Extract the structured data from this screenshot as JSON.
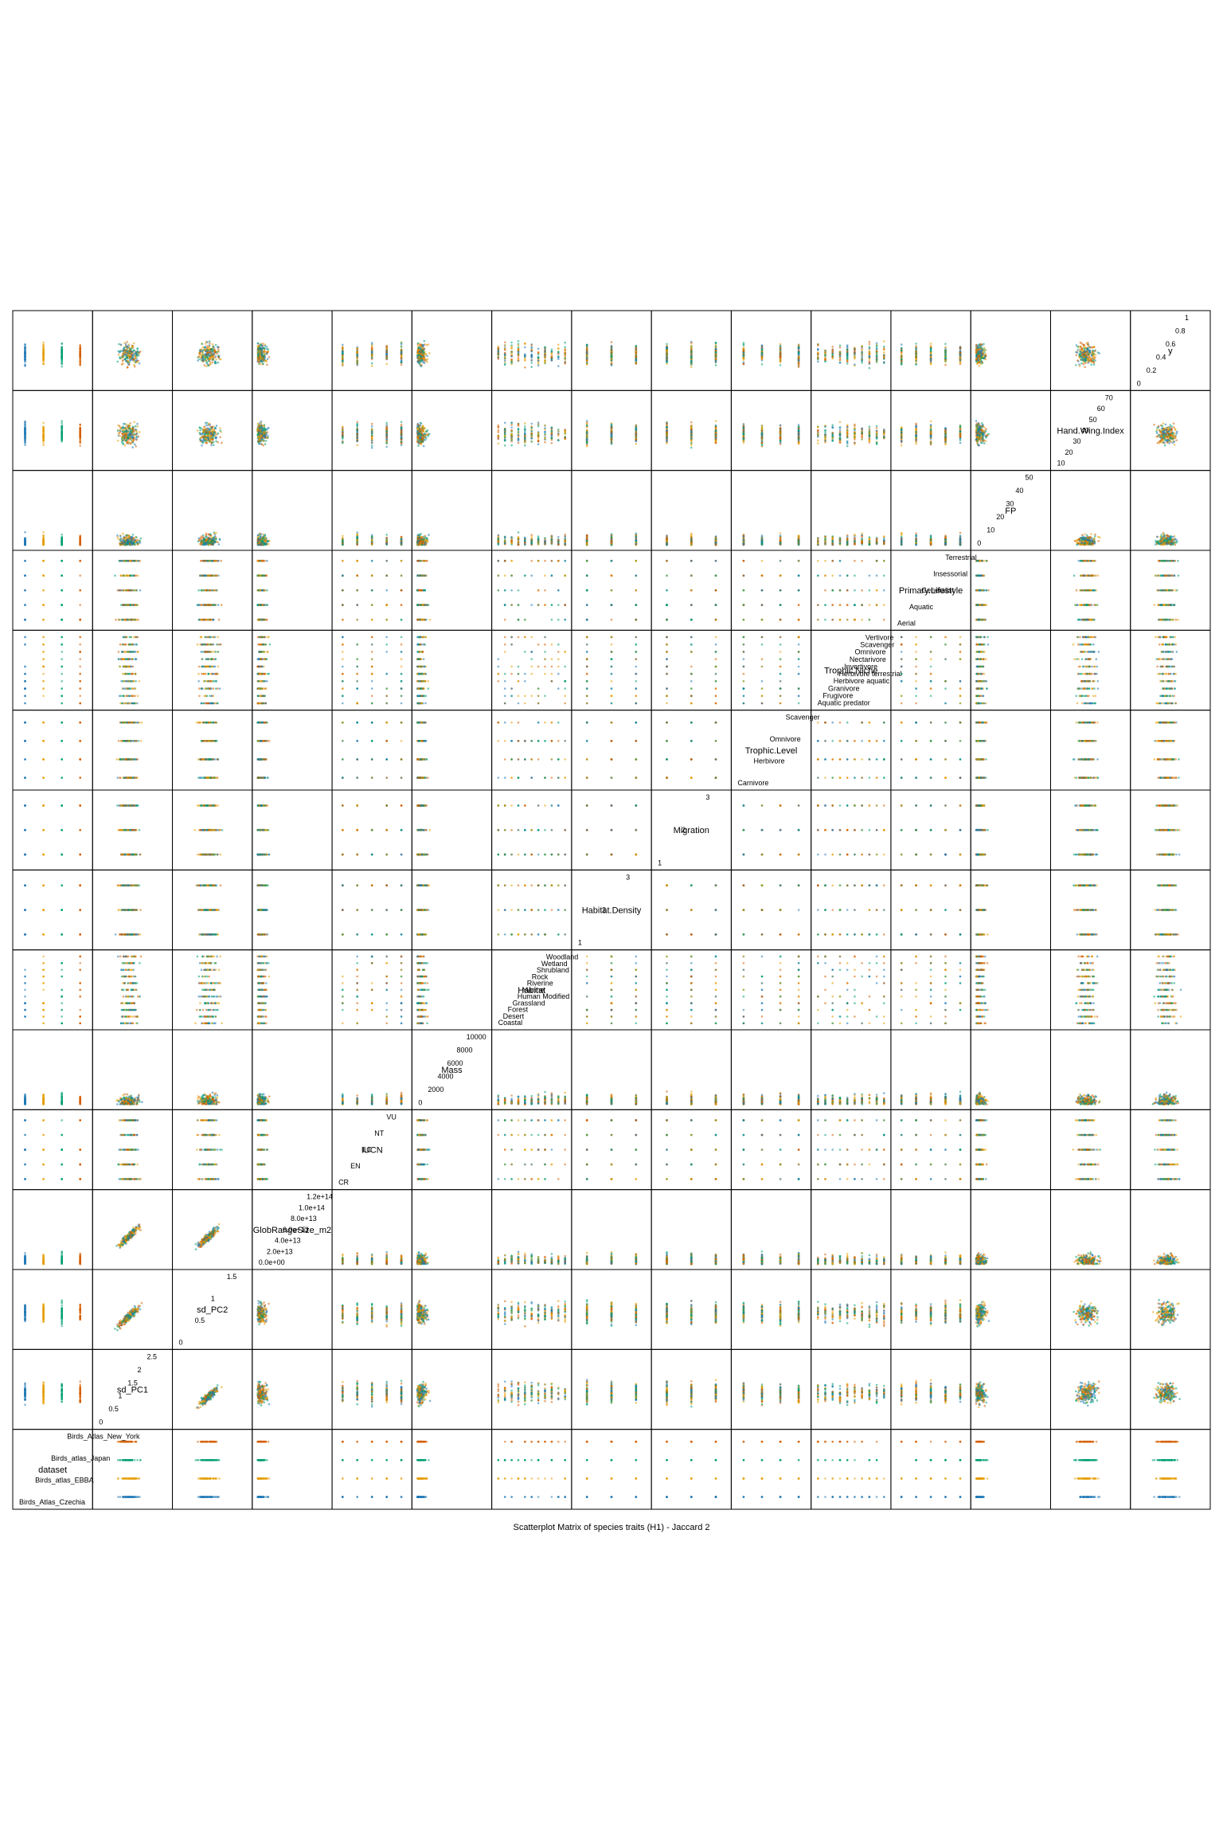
{
  "page": {
    "caption": "Scatterplot Matrix of species traits (H1) - Jaccard 2"
  },
  "colors": {
    "Birds_Atlas_Czechia": "#1f78b4",
    "Birds_atlas_EBBA": "#e69f00",
    "Birds_atlas_Japan": "#009e73",
    "Birds_Atlas_New_York": "#d55e00",
    "frame": "#000000"
  },
  "chart_data": {
    "type": "scatter-matrix",
    "title": "Scatterplot Matrix of species traits (H1) - Jaccard 2",
    "variables": [
      {
        "name": "dataset",
        "kind": "categorical",
        "levels": [
          "Birds_Atlas_Czechia",
          "Birds_atlas_EBBA",
          "Birds_atlas_Japan",
          "Birds_Atlas_New_York"
        ]
      },
      {
        "name": "sd_PC1",
        "kind": "numeric",
        "range": [
          0.0,
          2.8
        ],
        "ticks": [
          0.0,
          0.5,
          1.0,
          1.5,
          2.0,
          2.5
        ]
      },
      {
        "name": "sd_PC2",
        "kind": "numeric",
        "range": [
          0.0,
          1.8
        ],
        "ticks": [
          0.0,
          0.5,
          1.0,
          1.5
        ]
      },
      {
        "name": "GlobRangeSize_m2",
        "kind": "numeric",
        "range": [
          0,
          125000000000000.0
        ],
        "ticks": [
          "0.0e+00",
          "2.0e+13",
          "4.0e+13",
          "6.0e+13",
          "8.0e+13",
          "1.0e+14",
          "1.2e+14"
        ]
      },
      {
        "name": "IUCN",
        "kind": "categorical",
        "levels": [
          "CR",
          "EN",
          "LC",
          "NT",
          "VU"
        ]
      },
      {
        "name": "Mass",
        "kind": "numeric",
        "range": [
          0,
          12000
        ],
        "ticks": [
          0,
          2000,
          4000,
          6000,
          8000,
          10000
        ]
      },
      {
        "name": "Habitat",
        "kind": "categorical",
        "levels": [
          "Coastal",
          "Desert",
          "Forest",
          "Grassland",
          "Human Modified",
          "Marine",
          "Riverine",
          "Rock",
          "Shrubland",
          "Wetland",
          "Woodland"
        ]
      },
      {
        "name": "Habitat.Density",
        "kind": "categorical",
        "levels": [
          "1",
          "2",
          "3"
        ]
      },
      {
        "name": "Migration",
        "kind": "categorical",
        "levels": [
          "1",
          "2",
          "3"
        ]
      },
      {
        "name": "Trophic.Level",
        "kind": "categorical",
        "levels": [
          "Carnivore",
          "Herbivore",
          "Omnivore",
          "Scavenger"
        ]
      },
      {
        "name": "Trophic.Niche",
        "kind": "categorical",
        "levels": [
          "Aquatic predator",
          "Frugivore",
          "Granivore",
          "Herbivore aquatic",
          "Herbivore terrestrial",
          "Invertivore",
          "Nectarivore",
          "Omnivore",
          "Scavenger",
          "Vertivore"
        ]
      },
      {
        "name": "Primary.Lifestyle",
        "kind": "categorical",
        "levels": [
          "Aerial",
          "Aquatic",
          "Generalist",
          "Insessorial",
          "Terrestrial"
        ]
      },
      {
        "name": "FP",
        "kind": "numeric",
        "range": [
          0,
          60
        ],
        "ticks": [
          0,
          10,
          20,
          30,
          40,
          50
        ]
      },
      {
        "name": "Hand.Wing.Index",
        "kind": "numeric",
        "range": [
          5,
          75
        ],
        "ticks": [
          10,
          20,
          30,
          40,
          50,
          60,
          70
        ]
      },
      {
        "name": "y",
        "kind": "numeric",
        "range": [
          0,
          1
        ],
        "ticks": [
          0.0,
          0.2,
          0.4,
          0.6,
          0.8,
          1.0
        ]
      }
    ],
    "legend": "none",
    "grid": false
  }
}
